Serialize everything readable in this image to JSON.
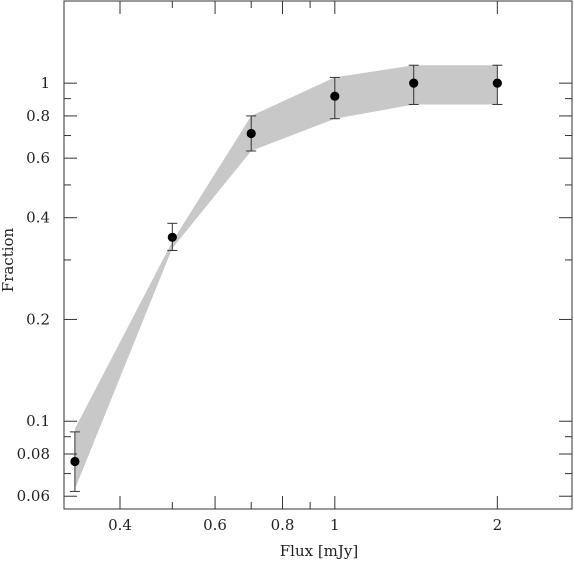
{
  "chart_data": {
    "type": "scatter",
    "title": "",
    "xlabel": "Flux [mJy]",
    "ylabel": "Fraction",
    "x_scale": "log",
    "y_scale": "log",
    "xlim": [
      0.315,
      2.75
    ],
    "ylim": [
      0.055,
      1.75
    ],
    "grid": false,
    "legend": "none",
    "x_ticks": {
      "major": [
        0.4,
        0.6,
        0.8,
        1,
        2
      ],
      "major_labels": [
        "0.4",
        "0.6",
        "0.8",
        "1",
        "2"
      ],
      "minor": [
        0.5,
        0.7,
        0.9
      ]
    },
    "y_ticks": {
      "major": [
        0.06,
        0.08,
        0.1,
        0.2,
        0.4,
        0.6,
        0.8,
        1
      ],
      "major_labels": [
        "0.06",
        "0.08",
        "0.1",
        "0.2",
        "0.4",
        "0.6",
        "0.8",
        "1"
      ],
      "minor": [
        0.07,
        0.09,
        0.3,
        0.5,
        0.7,
        0.9
      ]
    },
    "points": [
      {
        "x": 0.33,
        "y": 0.076,
        "yerr_low": 0.062,
        "yerr_high": 0.093
      },
      {
        "x": 0.5,
        "y": 0.35,
        "yerr_low": 0.32,
        "yerr_high": 0.385
      },
      {
        "x": 0.7,
        "y": 0.71,
        "yerr_low": 0.63,
        "yerr_high": 0.8
      },
      {
        "x": 1.0,
        "y": 0.915,
        "yerr_low": 0.785,
        "yerr_high": 1.04
      },
      {
        "x": 1.4,
        "y": 1.0,
        "yerr_low": 0.865,
        "yerr_high": 1.13
      },
      {
        "x": 2.0,
        "y": 1.0,
        "yerr_low": 0.865,
        "yerr_high": 1.13
      }
    ],
    "band": {
      "x": [
        0.33,
        0.5,
        0.7,
        1.0,
        1.4,
        2.0
      ],
      "lower": [
        0.063,
        0.325,
        0.63,
        0.785,
        0.865,
        0.865
      ],
      "upper": [
        0.095,
        0.34,
        0.8,
        1.04,
        1.13,
        1.13
      ]
    },
    "colors": {
      "band": "#c8c8c8",
      "points": "#000000",
      "axes": "#333333"
    }
  }
}
